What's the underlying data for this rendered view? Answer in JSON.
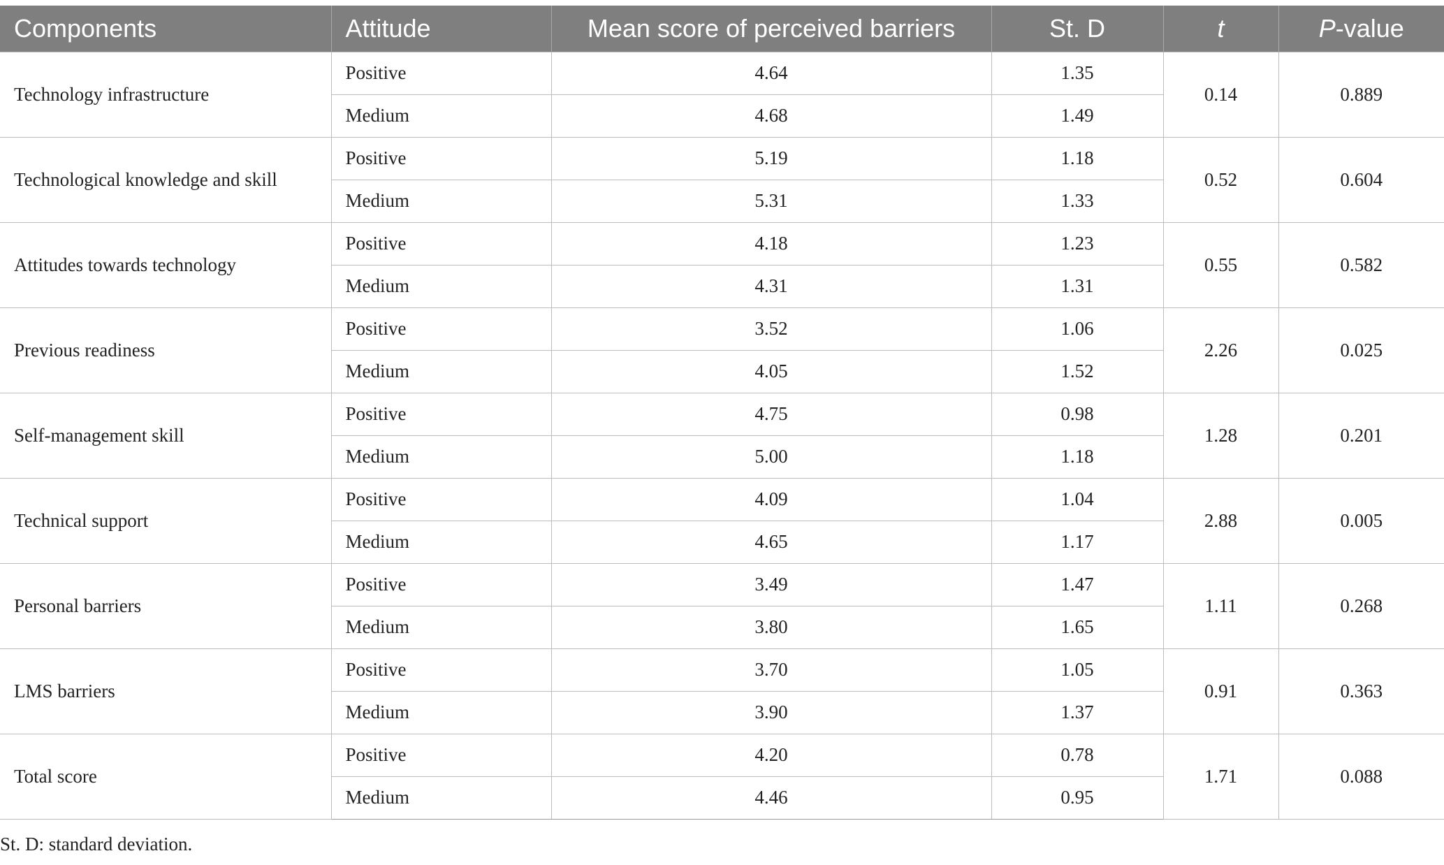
{
  "table": {
    "headers": {
      "components": "Components",
      "attitude": "Attitude",
      "mean": "Mean score of perceived barriers",
      "sd": "St. D",
      "t": "t",
      "p_italic": "P",
      "p_rest": "-value"
    },
    "groups": [
      {
        "component": "Technology infrastructure",
        "rows": [
          {
            "attitude": "Positive",
            "mean": "4.64",
            "sd": "1.35"
          },
          {
            "attitude": "Medium",
            "mean": "4.68",
            "sd": "1.49"
          }
        ],
        "t": "0.14",
        "p": "0.889"
      },
      {
        "component": "Technological knowledge and skill",
        "rows": [
          {
            "attitude": "Positive",
            "mean": "5.19",
            "sd": "1.18"
          },
          {
            "attitude": "Medium",
            "mean": "5.31",
            "sd": "1.33"
          }
        ],
        "t": "0.52",
        "p": "0.604"
      },
      {
        "component": "Attitudes towards technology",
        "rows": [
          {
            "attitude": "Positive",
            "mean": "4.18",
            "sd": "1.23"
          },
          {
            "attitude": "Medium",
            "mean": "4.31",
            "sd": "1.31"
          }
        ],
        "t": "0.55",
        "p": "0.582"
      },
      {
        "component": "Previous readiness",
        "rows": [
          {
            "attitude": "Positive",
            "mean": "3.52",
            "sd": "1.06"
          },
          {
            "attitude": "Medium",
            "mean": "4.05",
            "sd": "1.52"
          }
        ],
        "t": "2.26",
        "p": "0.025"
      },
      {
        "component": "Self-management skill",
        "rows": [
          {
            "attitude": "Positive",
            "mean": "4.75",
            "sd": "0.98"
          },
          {
            "attitude": "Medium",
            "mean": "5.00",
            "sd": "1.18"
          }
        ],
        "t": "1.28",
        "p": "0.201"
      },
      {
        "component": "Technical support",
        "rows": [
          {
            "attitude": "Positive",
            "mean": "4.09",
            "sd": "1.04"
          },
          {
            "attitude": "Medium",
            "mean": "4.65",
            "sd": "1.17"
          }
        ],
        "t": "2.88",
        "p": "0.005"
      },
      {
        "component": "Personal barriers",
        "rows": [
          {
            "attitude": "Positive",
            "mean": "3.49",
            "sd": "1.47"
          },
          {
            "attitude": "Medium",
            "mean": "3.80",
            "sd": "1.65"
          }
        ],
        "t": "1.11",
        "p": "0.268"
      },
      {
        "component": "LMS barriers",
        "rows": [
          {
            "attitude": "Positive",
            "mean": "3.70",
            "sd": "1.05"
          },
          {
            "attitude": "Medium",
            "mean": "3.90",
            "sd": "1.37"
          }
        ],
        "t": "0.91",
        "p": "0.363"
      },
      {
        "component": "Total score",
        "rows": [
          {
            "attitude": "Positive",
            "mean": "4.20",
            "sd": "0.78"
          },
          {
            "attitude": "Medium",
            "mean": "4.46",
            "sd": "0.95"
          }
        ],
        "t": "1.71",
        "p": "0.088"
      }
    ]
  },
  "footnote": "St. D: standard deviation.",
  "colors": {
    "header_bg": "#7f7f7f",
    "header_text": "#ffffff",
    "grid": "#bcbcbc",
    "text": "#222222"
  }
}
